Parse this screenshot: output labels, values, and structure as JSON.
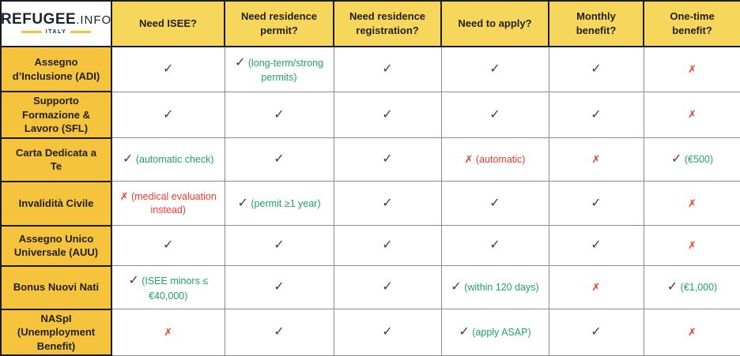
{
  "logo": {
    "brand": "REFUGEE",
    "suffix": ".INFO",
    "country": "ITALY"
  },
  "glyphs": {
    "check": "✓",
    "cross": "✗"
  },
  "colors": {
    "header_yellow": "#f7d75b",
    "row_yellow": "#f5c33c",
    "check_dark": "#3b4048",
    "note_green": "#1fa464",
    "alert_red": "#f23a31",
    "border_dark": "#1b1b1b",
    "border_gray": "#8c8c8c",
    "page_bg": "#d9d9d9",
    "logo_navy": "#1b2430"
  },
  "columns": [
    "Need ISEE?",
    "Need residence permit?",
    "Need residence registration?",
    "Need to apply?",
    "Monthly benefit?",
    "One-time benefit?"
  ],
  "rows": [
    {
      "name": "Assegno d’Inclusione (ADI)",
      "cells": [
        {
          "mark": "check",
          "note": "",
          "tone": ""
        },
        {
          "mark": "check",
          "note": "(long-term/strong permits)",
          "tone": "green"
        },
        {
          "mark": "check",
          "note": "",
          "tone": ""
        },
        {
          "mark": "check",
          "note": "",
          "tone": ""
        },
        {
          "mark": "check",
          "note": "",
          "tone": ""
        },
        {
          "mark": "cross",
          "note": "",
          "tone": ""
        }
      ]
    },
    {
      "name": "Supporto Formazione & Lavoro (SFL)",
      "cells": [
        {
          "mark": "check",
          "note": "",
          "tone": ""
        },
        {
          "mark": "check",
          "note": "",
          "tone": ""
        },
        {
          "mark": "check",
          "note": "",
          "tone": ""
        },
        {
          "mark": "check",
          "note": "",
          "tone": ""
        },
        {
          "mark": "check",
          "note": "",
          "tone": ""
        },
        {
          "mark": "cross",
          "note": "",
          "tone": ""
        }
      ]
    },
    {
      "name": "Carta Dedicata a Te",
      "cells": [
        {
          "mark": "check",
          "note": "(automatic check)",
          "tone": "green"
        },
        {
          "mark": "check",
          "note": "",
          "tone": ""
        },
        {
          "mark": "check",
          "note": "",
          "tone": ""
        },
        {
          "mark": "cross",
          "note": "(automatic)",
          "tone": "red"
        },
        {
          "mark": "cross",
          "note": "",
          "tone": ""
        },
        {
          "mark": "check",
          "note": "(€500)",
          "tone": "green"
        }
      ]
    },
    {
      "name": "Invalidità Civile",
      "cells": [
        {
          "mark": "cross",
          "note": "(medical evaluation instead)",
          "tone": "red"
        },
        {
          "mark": "check",
          "note": "(permit ≥1 year)",
          "tone": "green"
        },
        {
          "mark": "check",
          "note": "",
          "tone": ""
        },
        {
          "mark": "check",
          "note": "",
          "tone": ""
        },
        {
          "mark": "check",
          "note": "",
          "tone": ""
        },
        {
          "mark": "cross",
          "note": "",
          "tone": ""
        }
      ]
    },
    {
      "name": "Assegno Unico Universale (AUU)",
      "cells": [
        {
          "mark": "check",
          "note": "",
          "tone": ""
        },
        {
          "mark": "check",
          "note": "",
          "tone": ""
        },
        {
          "mark": "check",
          "note": "",
          "tone": ""
        },
        {
          "mark": "check",
          "note": "",
          "tone": ""
        },
        {
          "mark": "check",
          "note": "",
          "tone": ""
        },
        {
          "mark": "cross",
          "note": "",
          "tone": ""
        }
      ]
    },
    {
      "name": "Bonus Nuovi Nati",
      "cells": [
        {
          "mark": "check",
          "note": "(ISEE minors ≤ €40,000)",
          "tone": "green"
        },
        {
          "mark": "check",
          "note": "",
          "tone": ""
        },
        {
          "mark": "check",
          "note": "",
          "tone": ""
        },
        {
          "mark": "check",
          "note": "(within 120 days)",
          "tone": "green"
        },
        {
          "mark": "cross",
          "note": "",
          "tone": ""
        },
        {
          "mark": "check",
          "note": "(€1,000)",
          "tone": "green"
        }
      ]
    },
    {
      "name": "NASpI (Unemployment Benefit)",
      "cells": [
        {
          "mark": "cross",
          "note": "",
          "tone": ""
        },
        {
          "mark": "check",
          "note": "",
          "tone": ""
        },
        {
          "mark": "check",
          "note": "",
          "tone": ""
        },
        {
          "mark": "check",
          "note": "(apply ASAP)",
          "tone": "green"
        },
        {
          "mark": "check",
          "note": "",
          "tone": ""
        },
        {
          "mark": "cross",
          "note": "",
          "tone": ""
        }
      ]
    }
  ]
}
